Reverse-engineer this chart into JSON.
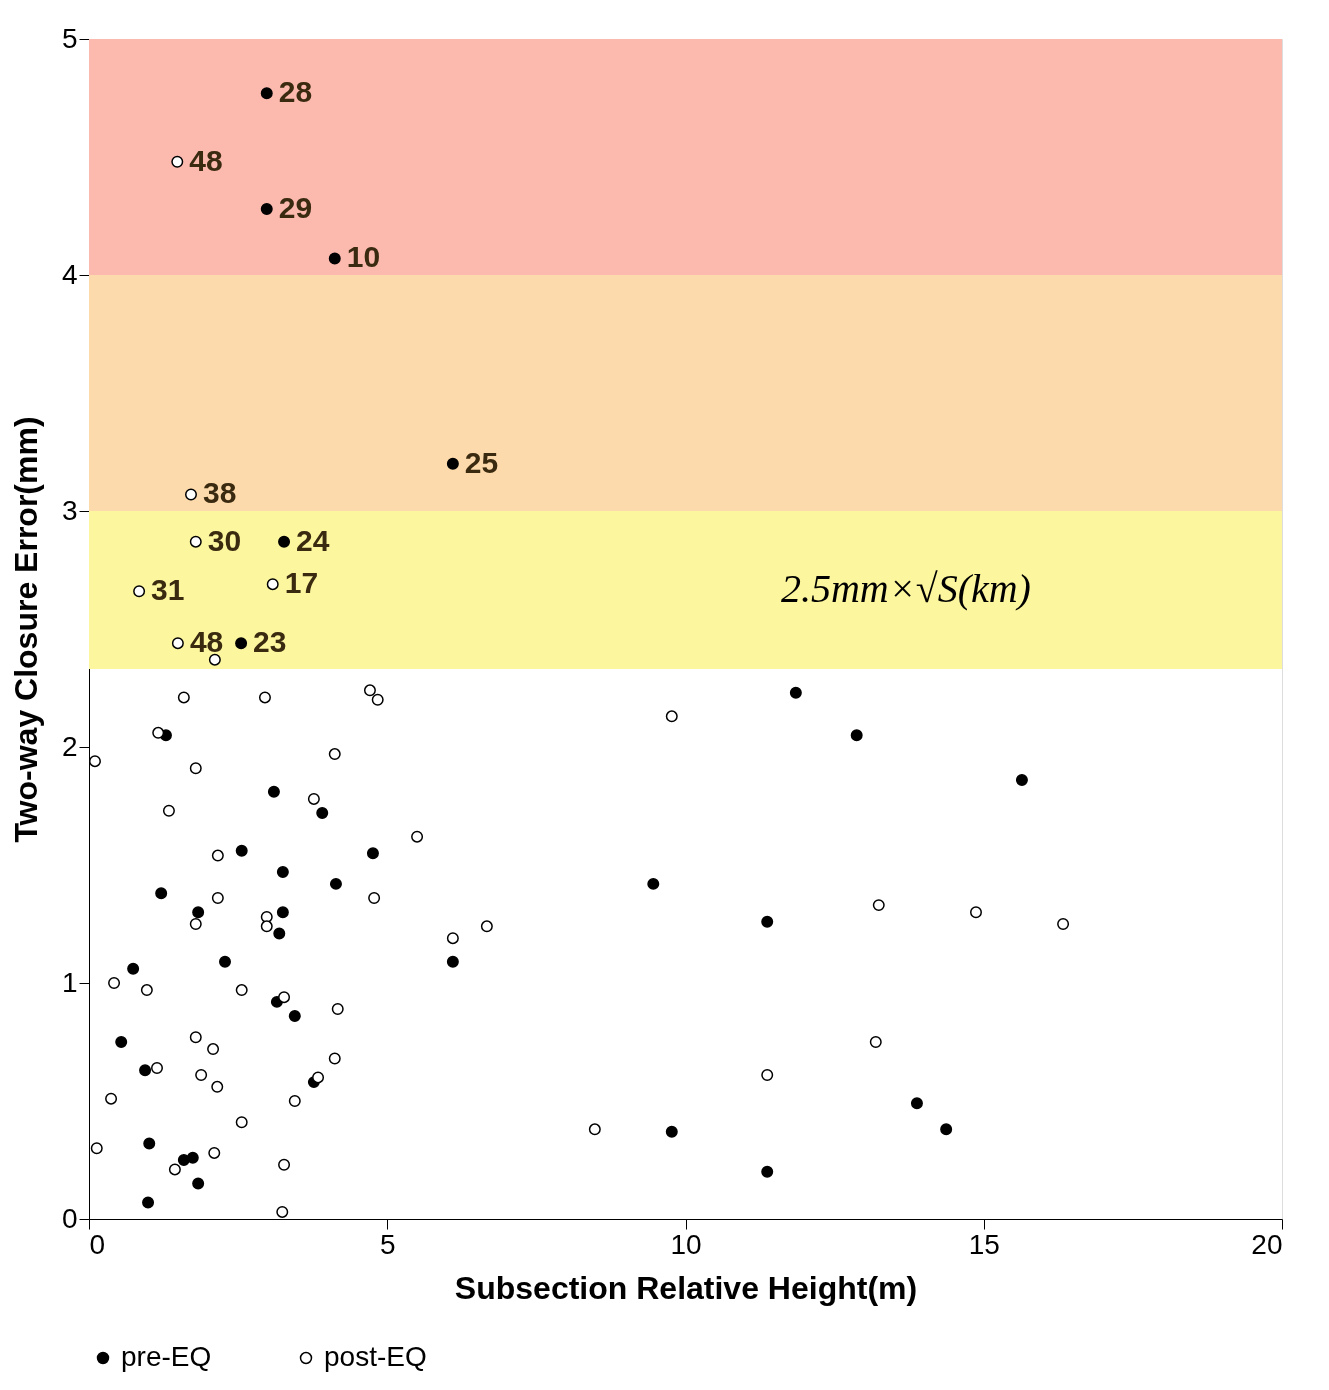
{
  "chart_data": {
    "type": "scatter",
    "xlabel": "Subsection Relative Height(m)",
    "ylabel": "Two-way Closure Error(mm)",
    "xlim": [
      0,
      20
    ],
    "xticks": [
      0,
      5,
      10,
      15,
      20
    ],
    "ylim": [
      0,
      5
    ],
    "yticks": [
      0,
      1,
      2,
      3,
      4,
      5
    ],
    "annotations": [
      "2.5mm×√S(km)",
      {
        "text": "28",
        "x": 2.98,
        "y": 4.77
      },
      {
        "text": "29",
        "x": 2.98,
        "y": 4.28
      },
      {
        "text": "10",
        "x": 4.12,
        "y": 4.07
      },
      {
        "text": "25",
        "x": 6.1,
        "y": 3.2
      },
      {
        "text": "24",
        "x": 3.27,
        "y": 2.87
      },
      {
        "text": "23",
        "x": 2.55,
        "y": 2.44
      },
      {
        "text": "48",
        "x": 1.48,
        "y": 4.48
      },
      {
        "text": "38",
        "x": 1.71,
        "y": 3.07
      },
      {
        "text": "30",
        "x": 1.79,
        "y": 2.87
      },
      {
        "text": "31",
        "x": 0.84,
        "y": 2.66
      },
      {
        "text": "17",
        "x": 3.08,
        "y": 2.69
      },
      {
        "text": "48",
        "x": 1.49,
        "y": 2.44
      }
    ],
    "grid": false,
    "legend": "bottom",
    "marker": "circle",
    "bands": [
      {
        "axis": "y",
        "from": 4,
        "to": 5,
        "color": "#fcb9ae"
      },
      {
        "axis": "y",
        "from": 3,
        "to": 4,
        "color": "#fcdaab"
      },
      {
        "axis": "y",
        "from": 2.33,
        "to": 3,
        "color": "#fcf69e"
      }
    ],
    "series": [
      {
        "name": "pre-EQ",
        "color": "#000000",
        "x": [
          2.98,
          2.98,
          4.12,
          6.1,
          3.27,
          2.55,
          11.85,
          12.87,
          15.64,
          1.29,
          3.1,
          3.91,
          2.56,
          4.76,
          3.25,
          1.21,
          4.14,
          9.46,
          1.83,
          3.25,
          3.19,
          11.37,
          2.28,
          6.1,
          0.74,
          3.15,
          3.45,
          0.54,
          0.94,
          1.01,
          1.59,
          1.74,
          1.83,
          0.99,
          3.77,
          9.77,
          13.88,
          14.37,
          11.37
        ],
        "values": [
          4.77,
          4.28,
          4.07,
          3.2,
          2.87,
          2.44,
          2.23,
          2.05,
          1.86,
          2.05,
          1.81,
          1.72,
          1.56,
          1.55,
          1.47,
          1.38,
          1.42,
          1.42,
          1.3,
          1.3,
          1.21,
          1.26,
          1.09,
          1.09,
          1.06,
          0.92,
          0.86,
          0.75,
          0.63,
          0.32,
          0.25,
          0.26,
          0.15,
          0.07,
          0.58,
          0.37,
          0.49,
          0.38,
          0.2
        ]
      },
      {
        "name": "post-EQ",
        "color": "#ffffff",
        "x": [
          1.48,
          1.71,
          1.79,
          0.84,
          3.08,
          1.49,
          2.11,
          1.59,
          2.95,
          4.71,
          4.84,
          9.77,
          1.16,
          0.1,
          1.79,
          4.12,
          3.77,
          1.34,
          5.5,
          2.16,
          2.16,
          4.78,
          13.24,
          14.87,
          16.33,
          1.79,
          2.98,
          2.98,
          6.1,
          6.67,
          0.42,
          0.97,
          2.56,
          3.27,
          4.17,
          1.79,
          2.08,
          13.19,
          1.14,
          1.88,
          2.15,
          4.12,
          3.84,
          3.45,
          0.37,
          11.37,
          8.48,
          2.56,
          0.13,
          2.1,
          1.44,
          3.27,
          3.24
        ],
        "values": [
          4.48,
          3.07,
          2.87,
          2.66,
          2.69,
          2.44,
          2.37,
          2.21,
          2.21,
          2.24,
          2.2,
          2.13,
          2.06,
          1.94,
          1.91,
          1.97,
          1.78,
          1.73,
          1.62,
          1.54,
          1.36,
          1.36,
          1.33,
          1.3,
          1.25,
          1.25,
          1.28,
          1.24,
          1.19,
          1.24,
          1.0,
          0.97,
          0.97,
          0.94,
          0.89,
          0.77,
          0.72,
          0.75,
          0.64,
          0.61,
          0.56,
          0.68,
          0.6,
          0.5,
          0.51,
          0.61,
          0.38,
          0.41,
          0.3,
          0.28,
          0.21,
          0.23,
          0.03
        ]
      }
    ]
  }
}
